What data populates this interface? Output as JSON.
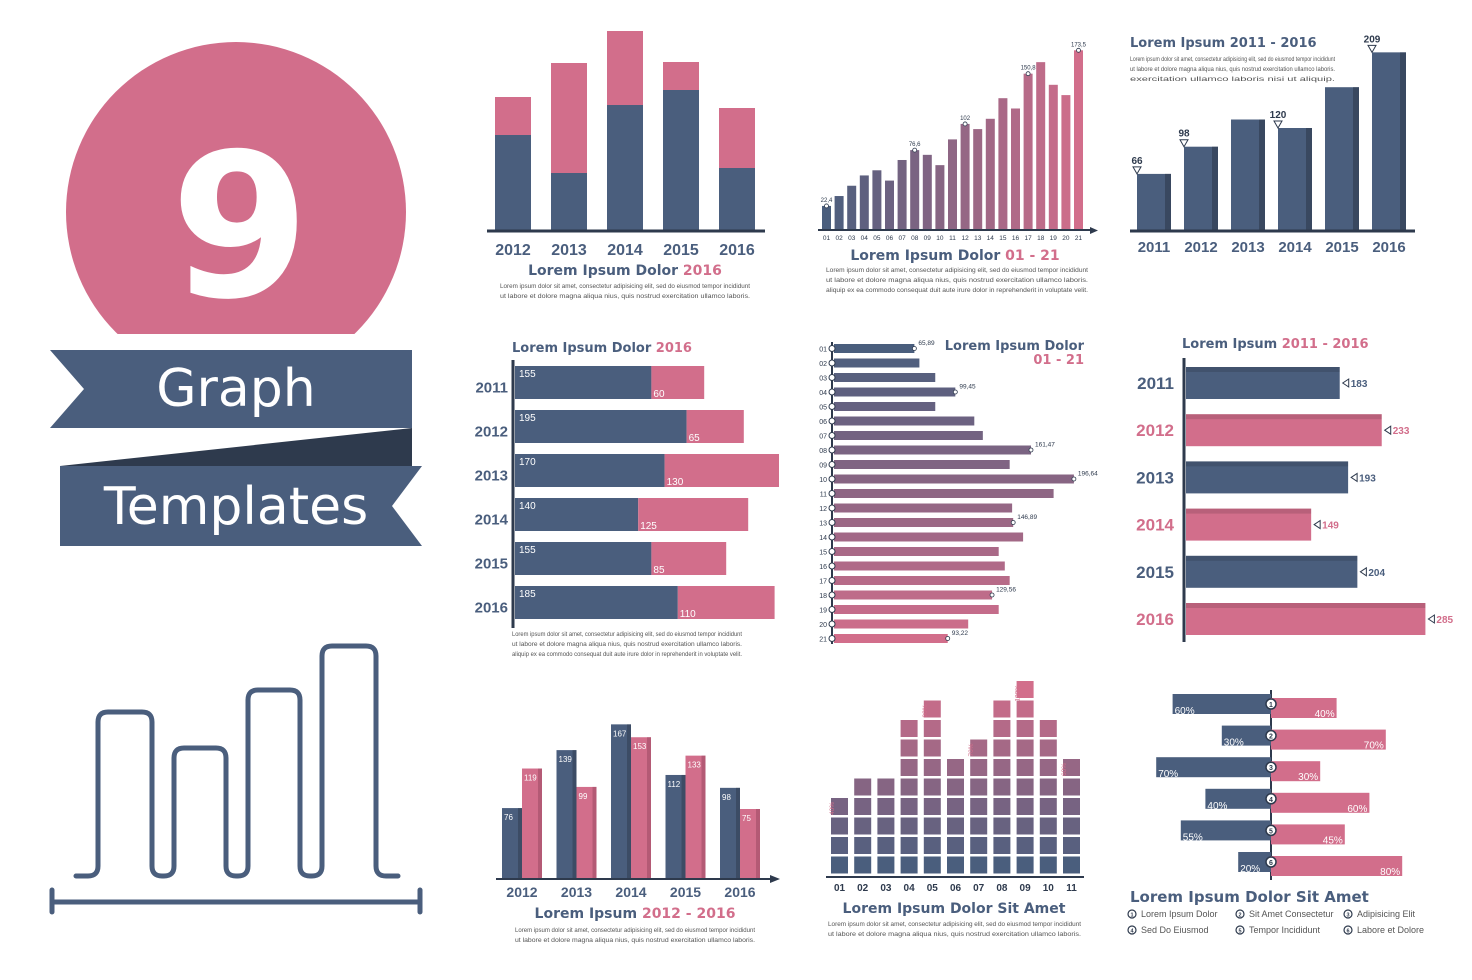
{
  "colors": {
    "navy": "#4a5e7d",
    "pink": "#d26e8b",
    "dark": "#2e3a4d",
    "text": "#555"
  },
  "hero": {
    "number": "9",
    "line1": "Graph",
    "line2": "Templates",
    "icon": "bar-chart-outline-icon"
  },
  "lorem_a": "Lorem ipsum dolor sit amet, consectetur adipisicing elit, sed do eiusmod tempor incididunt",
  "lorem_b": "ut labore et dolore magna aliqua nius, quis nostrud exercitation ullamco laboris.",
  "lorem_c": "aliquip ex ea commodo consequat duit aute irure dolor in reprehenderit in voluptate velit.",
  "lorem_d": "exercitation ullamco laboris nisi ut aliquip.",
  "chart_data": [
    {
      "id": "c1",
      "type": "bar",
      "stacked": true,
      "title_main": "Lorem Ipsum Dolor",
      "title_accent": "2016",
      "categories": [
        "2012",
        "2013",
        "2014",
        "2015",
        "2016"
      ],
      "series": [
        {
          "values": [
            95,
            57,
            125,
            140,
            62
          ]
        },
        {
          "values": [
            38,
            110,
            74,
            28,
            60
          ]
        }
      ]
    },
    {
      "id": "c2",
      "type": "bar",
      "title_main": "Lorem Ipsum Dolor",
      "title_accent": "01 - 21",
      "categories": [
        "01",
        "02",
        "03",
        "04",
        "05",
        "06",
        "07",
        "08",
        "09",
        "10",
        "11",
        "12",
        "13",
        "14",
        "15",
        "16",
        "17",
        "18",
        "19",
        "20",
        "21"
      ],
      "values": [
        22.4,
        32,
        42,
        52,
        57,
        47,
        67,
        76.6,
        72,
        62,
        87,
        102,
        97,
        107,
        127,
        117,
        150.8,
        162,
        140,
        130,
        173.5
      ],
      "labels": {
        "0": "22,4",
        "7": "76,6",
        "11": "102",
        "16": "150,8",
        "20": "173,5"
      }
    },
    {
      "id": "c3",
      "type": "bar",
      "title": "Lorem Ipsum 2011 - 2016",
      "categories": [
        "2011",
        "2012",
        "2013",
        "2014",
        "2015",
        "2016"
      ],
      "values": [
        66,
        98,
        130,
        120,
        168,
        209
      ],
      "labels": {
        "0": "66",
        "1": "98",
        "3": "120",
        "5": "209"
      }
    },
    {
      "id": "c4",
      "type": "bar",
      "orientation": "horizontal",
      "stacked": true,
      "title_main": "Lorem Ipsum Dolor",
      "title_accent": "2016",
      "categories": [
        "2011",
        "2012",
        "2013",
        "2014",
        "2015",
        "2016"
      ],
      "series": [
        {
          "values": [
            155,
            195,
            170,
            140,
            155,
            185
          ]
        },
        {
          "values": [
            60,
            65,
            130,
            125,
            85,
            110
          ]
        }
      ]
    },
    {
      "id": "c5",
      "type": "bar",
      "orientation": "horizontal",
      "title_main": "Lorem Ipsum Dolor",
      "title_accent": "01 - 21",
      "categories": [
        "01",
        "02",
        "03",
        "04",
        "05",
        "06",
        "07",
        "08",
        "09",
        "10",
        "11",
        "12",
        "13",
        "14",
        "15",
        "16",
        "17",
        "18",
        "19",
        "20",
        "21"
      ],
      "values": [
        65.89,
        70,
        83,
        99.45,
        83,
        115,
        122,
        161.47,
        144,
        196.64,
        180,
        146,
        146.89,
        155,
        135,
        140,
        144,
        129.56,
        135,
        110,
        93.22
      ],
      "labels": {
        "0": "65,89",
        "3": "99,45",
        "7": "161,47",
        "9": "196,64",
        "12": "146,89",
        "17": "129,56",
        "20": "93,22"
      }
    },
    {
      "id": "c6",
      "type": "bar",
      "orientation": "horizontal",
      "title_main": "Lorem Ipsum",
      "title_accent": "2011 - 2016",
      "categories": [
        "2011",
        "2012",
        "2013",
        "2014",
        "2015",
        "2016"
      ],
      "values": [
        183,
        233,
        193,
        149,
        204,
        285
      ]
    },
    {
      "id": "c7",
      "type": "bar",
      "title_main": "Lorem Ipsum",
      "title_accent": "2012 - 2016",
      "categories": [
        "2012",
        "2013",
        "2014",
        "2015",
        "2016"
      ],
      "series": [
        {
          "values": [
            76,
            139,
            167,
            112,
            98
          ]
        },
        {
          "values": [
            119,
            99,
            153,
            133,
            75
          ]
        }
      ]
    },
    {
      "id": "c8",
      "type": "bar",
      "title": "Lorem Ipsum Dolor Sit Amet",
      "categories": [
        "01",
        "02",
        "03",
        "04",
        "05",
        "06",
        "07",
        "08",
        "09",
        "10",
        "11"
      ],
      "values": [
        40,
        50,
        50,
        80,
        90,
        60,
        70,
        90,
        100,
        80,
        60
      ],
      "labels": {
        "0": "40%",
        "4": "90%",
        "6": "70%",
        "8": "100%",
        "10": "60%"
      }
    },
    {
      "id": "c9",
      "type": "bar",
      "orientation": "horizontal",
      "title": "Lorem Ipsum Dolor Sit Amet",
      "categories": [
        "1",
        "2",
        "3",
        "4",
        "5",
        "6"
      ],
      "series": [
        {
          "values": [
            60,
            30,
            70,
            40,
            55,
            20
          ]
        },
        {
          "values": [
            40,
            70,
            30,
            60,
            45,
            80
          ]
        }
      ],
      "legend": [
        "Lorem Ipsum Dolor",
        "Sit Amet Consectetur",
        "Adipisicing Elit",
        "Sed Do Eiusmod",
        "Tempor Incididunt",
        "Labore et Dolore"
      ]
    }
  ]
}
